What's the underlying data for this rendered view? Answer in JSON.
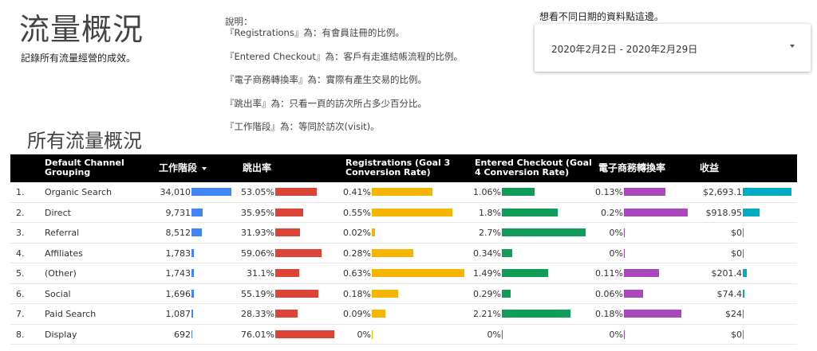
{
  "header": {
    "title": "流量概況",
    "subtitle": "記錄所有流量經營的成效。"
  },
  "notes": {
    "heading": "說明：",
    "lines": [
      "『Registrations』為：有會員註冊的比例。",
      "『Entered Checkout』為：客戶有走進結帳流程的比例。",
      "『電子商務轉換率』為：實際有產生交易的比例。",
      "『跳出率』為：只看一頁的訪次所占多少百分比。",
      "『工作階段』為：等同於訪次(visit)。"
    ]
  },
  "date_picker": {
    "hint": "想看不同日期的資料點這邊。",
    "value": "2020年2月2日 - 2020年2月29日",
    "icon": "dropdown-caret-icon"
  },
  "section_title": "所有流量概況",
  "colors": {
    "sessions": "#4285f4",
    "bounce": "#db4437",
    "registrations": "#f4b400",
    "checkout": "#0f9d58",
    "conversion": "#ab47bc",
    "revenue": "#00acc1"
  },
  "table": {
    "headers": {
      "channel": "Default Channel Grouping",
      "sessions": "工作階段",
      "bounce": "跳出率",
      "registrations": "Registrations (Goal 3 Conversion Rate)",
      "checkout": "Entered Checkout (Goal 4 Conversion Rate)",
      "conversion": "電子商務轉換率",
      "revenue": "收益"
    },
    "rows": [
      {
        "idx": "1.",
        "channel": "Organic Search",
        "sessions": "34,010",
        "sessions_v": 34010,
        "bounce": "53.05%",
        "bounce_v": 53.05,
        "reg": "0.41%",
        "reg_v": 0.41,
        "chk": "1.06%",
        "chk_v": 1.06,
        "conv": "0.13%",
        "conv_v": 0.13,
        "rev": "$2,693.1",
        "rev_v": 2693.1
      },
      {
        "idx": "2.",
        "channel": "Direct",
        "sessions": "9,731",
        "sessions_v": 9731,
        "bounce": "35.95%",
        "bounce_v": 35.95,
        "reg": "0.55%",
        "reg_v": 0.55,
        "chk": "1.8%",
        "chk_v": 1.8,
        "conv": "0.2%",
        "conv_v": 0.2,
        "rev": "$918.95",
        "rev_v": 918.95
      },
      {
        "idx": "3.",
        "channel": "Referral",
        "sessions": "8,512",
        "sessions_v": 8512,
        "bounce": "31.93%",
        "bounce_v": 31.93,
        "reg": "0.02%",
        "reg_v": 0.02,
        "chk": "2.7%",
        "chk_v": 2.7,
        "conv": "0%",
        "conv_v": 0,
        "rev": "$0",
        "rev_v": 0
      },
      {
        "idx": "4.",
        "channel": "Affiliates",
        "sessions": "1,783",
        "sessions_v": 1783,
        "bounce": "59.06%",
        "bounce_v": 59.06,
        "reg": "0.28%",
        "reg_v": 0.28,
        "chk": "0.34%",
        "chk_v": 0.34,
        "conv": "0%",
        "conv_v": 0,
        "rev": "$0",
        "rev_v": 0
      },
      {
        "idx": "5.",
        "channel": "(Other)",
        "sessions": "1,743",
        "sessions_v": 1743,
        "bounce": "31.1%",
        "bounce_v": 31.1,
        "reg": "0.63%",
        "reg_v": 0.63,
        "chk": "1.49%",
        "chk_v": 1.49,
        "conv": "0.11%",
        "conv_v": 0.11,
        "rev": "$201.4",
        "rev_v": 201.4
      },
      {
        "idx": "6.",
        "channel": "Social",
        "sessions": "1,696",
        "sessions_v": 1696,
        "bounce": "55.19%",
        "bounce_v": 55.19,
        "reg": "0.18%",
        "reg_v": 0.18,
        "chk": "0.29%",
        "chk_v": 0.29,
        "conv": "0.06%",
        "conv_v": 0.06,
        "rev": "$74.4",
        "rev_v": 74.4
      },
      {
        "idx": "7.",
        "channel": "Paid Search",
        "sessions": "1,087",
        "sessions_v": 1087,
        "bounce": "28.33%",
        "bounce_v": 28.33,
        "reg": "0.09%",
        "reg_v": 0.09,
        "chk": "2.21%",
        "chk_v": 2.21,
        "conv": "0.18%",
        "conv_v": 0.18,
        "rev": "$24",
        "rev_v": 24
      },
      {
        "idx": "8.",
        "channel": "Display",
        "sessions": "692",
        "sessions_v": 692,
        "bounce": "76.01%",
        "bounce_v": 76.01,
        "reg": "0%",
        "reg_v": 0,
        "chk": "0%",
        "chk_v": 0,
        "conv": "0%",
        "conv_v": 0,
        "rev": "$0",
        "rev_v": 0
      }
    ]
  }
}
